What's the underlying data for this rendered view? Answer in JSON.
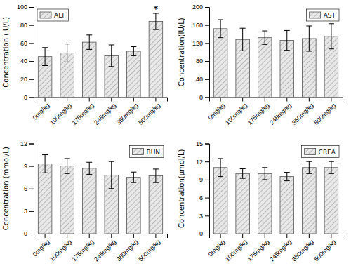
{
  "chart_data": [
    {
      "type": "bar",
      "categories": [
        "0mg/kg",
        "100mg/kg",
        "175mg/kg",
        "245mg/kg",
        "350mg/kg",
        "500mg/kg"
      ],
      "series": [
        {
          "name": "ALT",
          "color": "#e8e8e8",
          "values": [
            45,
            49,
            61,
            46,
            51,
            84
          ],
          "errors": [
            10,
            10,
            8,
            12,
            5,
            9
          ]
        }
      ],
      "y_label": "Concentration (IU/L)",
      "ylim": [
        0,
        100
      ],
      "yticks": [
        0,
        20,
        40,
        60,
        80,
        100
      ],
      "annotations": [
        {
          "text": "*",
          "category": "500mg/kg"
        }
      ],
      "legend": "upper left",
      "grid": false
    },
    {
      "type": "bar",
      "categories": [
        "0mg/kg",
        "100mg/kg",
        "175mg/kg",
        "245mg/kg",
        "350mg/kg",
        "500mg/kg"
      ],
      "series": [
        {
          "name": "AST",
          "color": "#e8e8e8",
          "values": [
            152,
            128,
            132,
            126,
            130,
            135
          ],
          "errors": [
            20,
            25,
            15,
            22,
            28,
            28
          ]
        }
      ],
      "y_label": "Concentration(IU/L)",
      "ylim": [
        0,
        200
      ],
      "yticks": [
        0,
        40,
        80,
        120,
        160,
        200
      ],
      "legend": "upper right",
      "grid": false
    },
    {
      "type": "bar",
      "categories": [
        "0mg/kg",
        "100mg/kg",
        "175mg/kg",
        "245mg/kg",
        "350mg/kg",
        "500mg/kg"
      ],
      "series": [
        {
          "name": "BUN",
          "color": "#e8e8e8",
          "values": [
            9.3,
            9.0,
            8.7,
            7.8,
            7.5,
            7.7
          ],
          "errors": [
            1.2,
            1.0,
            0.8,
            1.8,
            0.7,
            0.9
          ]
        }
      ],
      "y_label": "Concentration (mmol/L)",
      "ylim": [
        0,
        12
      ],
      "yticks": [
        0,
        3,
        6,
        9,
        12
      ],
      "legend": "upper right",
      "grid": false
    },
    {
      "type": "bar",
      "categories": [
        "0mg/kg",
        "100mg/kg",
        "175mg/kg",
        "245mg/kg",
        "350mg/kg",
        "500mg/kg"
      ],
      "series": [
        {
          "name": "CREA",
          "color": "#e8e8e8",
          "values": [
            11.0,
            10.0,
            10.0,
            9.5,
            11.0,
            11.0
          ],
          "errors": [
            1.5,
            0.8,
            1.0,
            0.7,
            1.0,
            1.0
          ]
        }
      ],
      "y_label": "Concentration(μmol/L)",
      "ylim": [
        0,
        15
      ],
      "yticks": [
        0,
        3,
        6,
        9,
        12,
        15
      ],
      "legend": "upper right",
      "grid": false
    }
  ]
}
